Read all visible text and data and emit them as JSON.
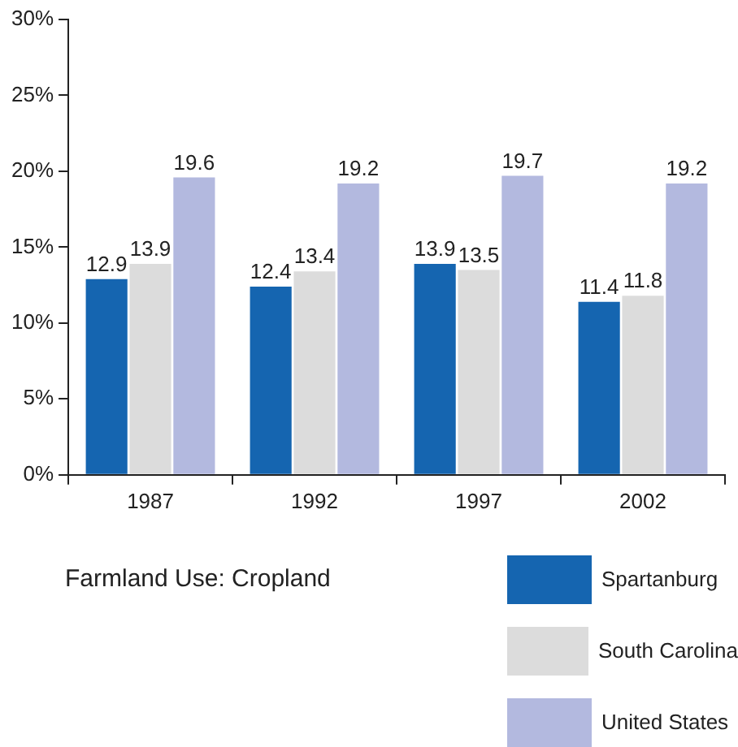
{
  "chart_data": {
    "type": "bar",
    "title": "Farmland Use: Cropland",
    "categories": [
      "1987",
      "1992",
      "1997",
      "2002"
    ],
    "series": [
      {
        "name": "Spartanburg",
        "color": "#1565b0",
        "values": [
          12.9,
          12.4,
          13.9,
          11.4
        ]
      },
      {
        "name": "South Carolina",
        "color": "#dcdcdc",
        "values": [
          13.9,
          13.4,
          13.5,
          11.8
        ]
      },
      {
        "name": "United States",
        "color": "#b3b9df",
        "values": [
          19.6,
          19.2,
          19.7,
          19.2
        ]
      }
    ],
    "ylim": [
      0,
      30
    ],
    "yticks": [
      {
        "value": 0,
        "label": "0%"
      },
      {
        "value": 5,
        "label": "5%"
      },
      {
        "value": 10,
        "label": "10%"
      },
      {
        "value": 15,
        "label": "15%"
      },
      {
        "value": 20,
        "label": "20%"
      },
      {
        "value": 25,
        "label": "25%"
      },
      {
        "value": 30,
        "label": "30%"
      }
    ],
    "grid": false,
    "legend": "bottom right",
    "data_labels": true
  }
}
